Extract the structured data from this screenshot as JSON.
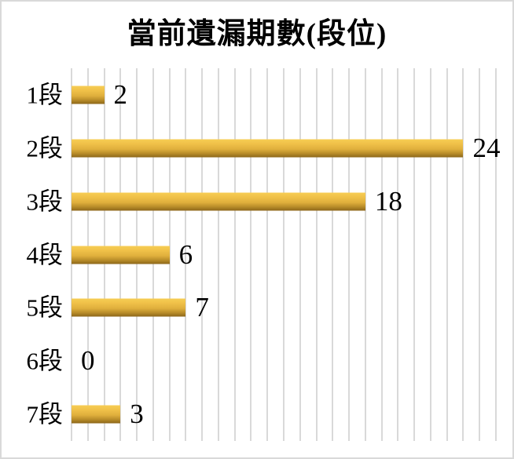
{
  "title": "當前遺漏期數(段位)",
  "chart_data": {
    "type": "bar",
    "orientation": "horizontal",
    "title": "當前遺漏期數(段位)",
    "categories": [
      "1段",
      "2段",
      "3段",
      "4段",
      "5段",
      "6段",
      "7段"
    ],
    "values": [
      2,
      24,
      18,
      6,
      7,
      0,
      3
    ],
    "data_labels": [
      2,
      24,
      18,
      6,
      7,
      0,
      3
    ],
    "xlabel": "",
    "ylabel": "",
    "xlim": [
      0,
      26
    ],
    "gridline_step": 1,
    "grid": "vertical-only",
    "legend": "none",
    "colors": {
      "bar_gradient_top": "#F7CD54",
      "bar_gradient_upper": "#F0C149",
      "bar_gradient_mid": "#DFAF3C",
      "bar_gradient_lower": "#B68A28",
      "bar_gradient_bottom": "#8C661A",
      "gridline": "#D9D9D9",
      "border": "#D9D9D9",
      "text": "#000000",
      "background": "#FFFFFF"
    }
  }
}
